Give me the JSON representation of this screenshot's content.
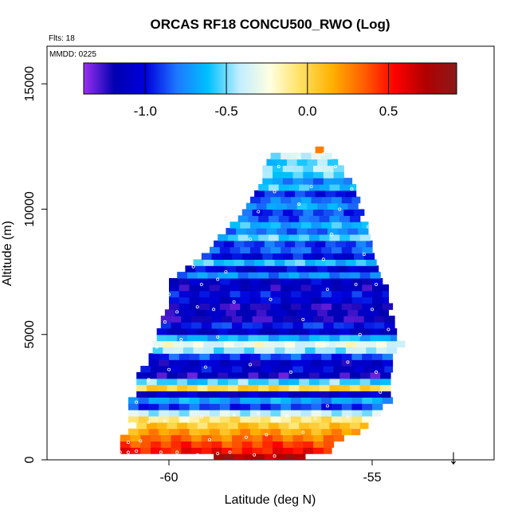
{
  "chart_data": {
    "type": "heatmap",
    "title": "ORCAS RF18 CONCU500_RWO (Log)",
    "annotations": {
      "flights": "Flts: 18",
      "date": "MMDD: 0225"
    },
    "xlabel": "Latitude (deg N)",
    "ylabel": "Altitude (m)",
    "xlim": [
      -63,
      -52
    ],
    "ylim": [
      0,
      16500
    ],
    "x_ticks": [
      -60,
      -55
    ],
    "y_ticks": [
      0,
      5000,
      10000,
      15000
    ],
    "colorbar": {
      "range": [
        -1.38,
        0.92
      ],
      "ticks": [
        -1.0,
        -0.5,
        0.0,
        0.5
      ],
      "tick_labels": [
        "-1.0",
        "-0.5",
        "0.0",
        "0.5"
      ],
      "colors": [
        "#9a30f0",
        "#0000b0",
        "#0000dd",
        "#1e78ff",
        "#00c0ff",
        "#c0eeff",
        "#ffffe0",
        "#ffe060",
        "#ffb000",
        "#ff6000",
        "#ff0000",
        "#b00000",
        "#8b1a1a"
      ]
    },
    "profile_bands": [
      {
        "alt_range": [
          0,
          250
        ],
        "lat_range": [
          -58.9,
          -56.6
        ],
        "value": 0.75
      },
      {
        "alt_range": [
          250,
          500
        ],
        "lat_range": [
          -61.2,
          -56.0
        ],
        "value": 0.52
      },
      {
        "alt_range": [
          500,
          750
        ],
        "lat_range": [
          -61.2,
          -55.9
        ],
        "value": 0.42
      },
      {
        "alt_range": [
          750,
          1000
        ],
        "lat_range": [
          -61.2,
          -55.6
        ],
        "value": 0.3
      },
      {
        "alt_range": [
          1000,
          1250
        ],
        "lat_range": [
          -61.0,
          -55.3
        ],
        "value": 0.18
      },
      {
        "alt_range": [
          1250,
          1500
        ],
        "lat_range": [
          -60.8,
          -55.1
        ],
        "value": 0.05
      },
      {
        "alt_range": [
          1500,
          1750
        ],
        "lat_range": [
          -61.0,
          -54.9
        ],
        "value": -0.1
      },
      {
        "alt_range": [
          1750,
          2000
        ],
        "lat_range": [
          -61.0,
          -54.8
        ],
        "value": -0.4
      },
      {
        "alt_range": [
          2000,
          2250
        ],
        "lat_range": [
          -61.0,
          -54.7
        ],
        "value": -0.9
      },
      {
        "alt_range": [
          2250,
          2500
        ],
        "lat_range": [
          -61.0,
          -54.5
        ],
        "value": -0.7
      },
      {
        "alt_range": [
          2500,
          2750
        ],
        "lat_range": [
          -60.8,
          -54.5
        ],
        "value": -1.1
      },
      {
        "alt_range": [
          2750,
          3000
        ],
        "lat_range": [
          -60.8,
          -54.5
        ],
        "value": 0.0
      },
      {
        "alt_range": [
          3000,
          3250
        ],
        "lat_range": [
          -60.8,
          -54.5
        ],
        "value": -0.55
      },
      {
        "alt_range": [
          3250,
          3500
        ],
        "lat_range": [
          -60.8,
          -54.5
        ],
        "value": -1.2
      },
      {
        "alt_range": [
          3500,
          3750
        ],
        "lat_range": [
          -60.7,
          -54.5
        ],
        "value": -1.05
      },
      {
        "alt_range": [
          3750,
          4000
        ],
        "lat_range": [
          -60.5,
          -54.4
        ],
        "value": -1.1
      },
      {
        "alt_range": [
          4000,
          4250
        ],
        "lat_range": [
          -60.5,
          -54.4
        ],
        "value": -0.9
      },
      {
        "alt_range": [
          4250,
          4500
        ],
        "lat_range": [
          -60.4,
          -54.4
        ],
        "value": -0.45
      },
      {
        "alt_range": [
          4500,
          4750
        ],
        "lat_range": [
          -60.4,
          -54.2
        ],
        "value": -0.3
      },
      {
        "alt_range": [
          4750,
          5000
        ],
        "lat_range": [
          -60.3,
          -54.4
        ],
        "value": -0.65
      },
      {
        "alt_range": [
          5000,
          5250
        ],
        "lat_range": [
          -60.3,
          -54.4
        ],
        "value": -1.1
      },
      {
        "alt_range": [
          5250,
          5500
        ],
        "lat_range": [
          -60.2,
          -54.4
        ],
        "value": -0.95
      },
      {
        "alt_range": [
          5500,
          5750
        ],
        "lat_range": [
          -60.2,
          -54.4
        ],
        "value": -1.2
      },
      {
        "alt_range": [
          5750,
          6000
        ],
        "lat_range": [
          -60.1,
          -54.5
        ],
        "value": -1.15
      },
      {
        "alt_range": [
          6000,
          6250
        ],
        "lat_range": [
          -60.0,
          -54.5
        ],
        "value": -1.2
      },
      {
        "alt_range": [
          6250,
          6500
        ],
        "lat_range": [
          -60.0,
          -54.6
        ],
        "value": -1.05
      },
      {
        "alt_range": [
          6500,
          6750
        ],
        "lat_range": [
          -60.0,
          -54.6
        ],
        "value": -1.0
      },
      {
        "alt_range": [
          6750,
          7000
        ],
        "lat_range": [
          -60.0,
          -54.6
        ],
        "value": -1.15
      },
      {
        "alt_range": [
          7000,
          7250
        ],
        "lat_range": [
          -60.0,
          -54.7
        ],
        "value": -1.1
      },
      {
        "alt_range": [
          7250,
          7500
        ],
        "lat_range": [
          -59.8,
          -54.7
        ],
        "value": -0.75
      },
      {
        "alt_range": [
          7500,
          7750
        ],
        "lat_range": [
          -59.6,
          -54.8
        ],
        "value": -1.05
      },
      {
        "alt_range": [
          7750,
          8000
        ],
        "lat_range": [
          -59.4,
          -54.8
        ],
        "value": -0.6
      },
      {
        "alt_range": [
          8000,
          8250
        ],
        "lat_range": [
          -59.2,
          -54.9
        ],
        "value": -1.0
      },
      {
        "alt_range": [
          8250,
          8500
        ],
        "lat_range": [
          -59.0,
          -54.9
        ],
        "value": -0.85
      },
      {
        "alt_range": [
          8500,
          8750
        ],
        "lat_range": [
          -58.9,
          -55.0
        ],
        "value": -0.9
      },
      {
        "alt_range": [
          8750,
          9000
        ],
        "lat_range": [
          -58.8,
          -55.0
        ],
        "value": -0.55
      },
      {
        "alt_range": [
          9000,
          9250
        ],
        "lat_range": [
          -58.6,
          -55.1
        ],
        "value": -0.8
      },
      {
        "alt_range": [
          9250,
          9500
        ],
        "lat_range": [
          -58.5,
          -55.1
        ],
        "value": -0.65
      },
      {
        "alt_range": [
          9500,
          9750
        ],
        "lat_range": [
          -58.3,
          -55.2
        ],
        "value": -0.85
      },
      {
        "alt_range": [
          9750,
          10000
        ],
        "lat_range": [
          -58.2,
          -55.2
        ],
        "value": -0.9
      },
      {
        "alt_range": [
          10000,
          10250
        ],
        "lat_range": [
          -58.1,
          -55.3
        ],
        "value": -0.7
      },
      {
        "alt_range": [
          10250,
          10500
        ],
        "lat_range": [
          -58.0,
          -55.3
        ],
        "value": -0.8
      },
      {
        "alt_range": [
          10500,
          10750
        ],
        "lat_range": [
          -57.9,
          -55.4
        ],
        "value": -0.95
      },
      {
        "alt_range": [
          10750,
          11000
        ],
        "lat_range": [
          -57.8,
          -55.4
        ],
        "value": -0.6
      },
      {
        "alt_range": [
          11000,
          11250
        ],
        "lat_range": [
          -57.7,
          -55.5
        ],
        "value": -0.75
      },
      {
        "alt_range": [
          11250,
          11500
        ],
        "lat_range": [
          -57.7,
          -55.6
        ],
        "value": -0.55
      },
      {
        "alt_range": [
          11500,
          11750
        ],
        "lat_range": [
          -57.7,
          -55.7
        ],
        "value": -0.45
      },
      {
        "alt_range": [
          11750,
          12000
        ],
        "lat_range": [
          -57.6,
          -55.8
        ],
        "value": -0.55
      },
      {
        "alt_range": [
          12000,
          12250
        ],
        "lat_range": [
          -57.5,
          -56.0
        ],
        "value": -0.4
      },
      {
        "alt_range": [
          12250,
          12500
        ],
        "lat_range": [
          -56.4,
          -56.2
        ],
        "value": 0.3
      }
    ],
    "sample_points": [
      [
        -61.2,
        300
      ],
      [
        -61.0,
        300
      ],
      [
        -60.8,
        350
      ],
      [
        -60.2,
        300
      ],
      [
        -59.8,
        300
      ],
      [
        -59.3,
        200
      ],
      [
        -58.8,
        250
      ],
      [
        -58.5,
        300
      ],
      [
        -57.9,
        200
      ],
      [
        -57.4,
        150
      ],
      [
        -56.6,
        150
      ],
      [
        -61.0,
        700
      ],
      [
        -60.7,
        750
      ],
      [
        -59.0,
        800
      ],
      [
        -58.1,
        900
      ],
      [
        -57.6,
        1000
      ],
      [
        -56.7,
        1100
      ],
      [
        -60.9,
        1450
      ],
      [
        -60.5,
        1500
      ],
      [
        -60.1,
        1550
      ],
      [
        -59.6,
        1600
      ],
      [
        -59.2,
        1700
      ],
      [
        -58.4,
        1800
      ],
      [
        -57.8,
        1850
      ],
      [
        -57.1,
        1750
      ],
      [
        -56.4,
        1650
      ],
      [
        -55.6,
        1700
      ],
      [
        -60.8,
        2300
      ],
      [
        -56.1,
        2150
      ],
      [
        -54.8,
        2700
      ],
      [
        -60.5,
        3200
      ],
      [
        -60.0,
        3600
      ],
      [
        -59.1,
        3700
      ],
      [
        -58.0,
        3800
      ],
      [
        -57.0,
        3500
      ],
      [
        -55.6,
        3900
      ],
      [
        -54.9,
        3500
      ],
      [
        -60.3,
        4500
      ],
      [
        -59.7,
        4800
      ],
      [
        -58.8,
        4900
      ],
      [
        -56.1,
        4600
      ],
      [
        -55.3,
        5000
      ],
      [
        -54.6,
        5200
      ],
      [
        -60.1,
        5500
      ],
      [
        -59.8,
        5900
      ],
      [
        -59.3,
        6100
      ],
      [
        -58.9,
        6000
      ],
      [
        -58.4,
        6300
      ],
      [
        -56.7,
        5600
      ],
      [
        -55.0,
        6000
      ],
      [
        -60.0,
        6600
      ],
      [
        -59.2,
        7000
      ],
      [
        -58.8,
        7200
      ],
      [
        -57.5,
        6400
      ],
      [
        -56.1,
        6800
      ],
      [
        -55.4,
        7000
      ],
      [
        -54.9,
        7000
      ],
      [
        -54.7,
        7500
      ],
      [
        -59.4,
        7700
      ],
      [
        -58.6,
        7500
      ],
      [
        -56.2,
        8000
      ],
      [
        -55.2,
        8200
      ],
      [
        -58.0,
        8800
      ],
      [
        -56.0,
        9000
      ],
      [
        -54.9,
        8400
      ],
      [
        -57.8,
        9900
      ],
      [
        -56.8,
        10200
      ],
      [
        -55.8,
        10000
      ],
      [
        -55.1,
        9300
      ],
      [
        -57.4,
        10700
      ],
      [
        -56.5,
        10900
      ],
      [
        -55.5,
        10800
      ],
      [
        -55.3,
        11000
      ],
      [
        -57.3,
        11700
      ],
      [
        -56.8,
        12100
      ],
      [
        -56.2,
        12200
      ],
      [
        -55.9,
        11700
      ],
      [
        -55.6,
        12200
      ]
    ],
    "marker": {
      "symbol": "↓",
      "lat": -53.0
    }
  }
}
